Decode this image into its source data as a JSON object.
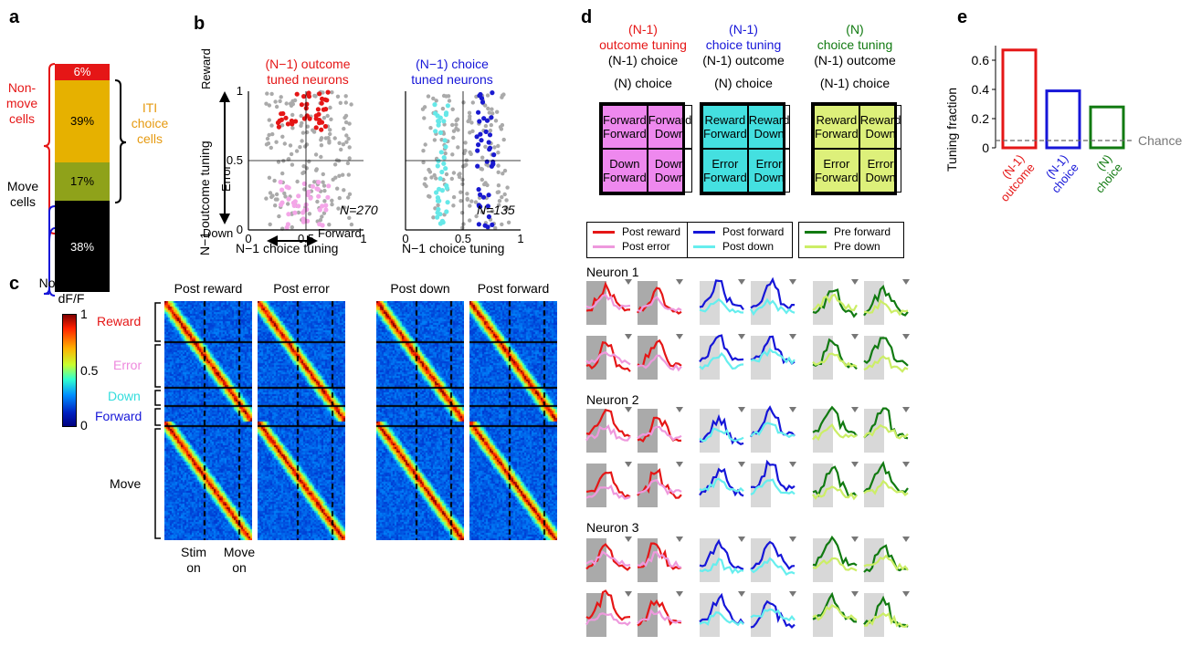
{
  "panel_a": {
    "label": "a",
    "segments": [
      {
        "pct": "6%",
        "color": "#e51616"
      },
      {
        "pct": "39%",
        "color": "#e6b100"
      },
      {
        "pct": "17%",
        "color": "#8fa21a"
      },
      {
        "pct": "38%",
        "color": "#000000"
      }
    ],
    "nonmove_label_1": "Non-",
    "nonmove_label_2": "move",
    "nonmove_label_3": "cells",
    "move_label_1": "Move",
    "move_label_2": "cells",
    "iti_label_1": "ITI",
    "iti_label_2": "choice",
    "iti_label_3": "cells"
  },
  "panel_b": {
    "label": "b",
    "left_title_1": "(N−1) outcome",
    "left_title_2": "tuned neurons",
    "right_title_1": "(N−1) choice",
    "right_title_2": "tuned neurons",
    "ylabel": "N−1 outcome tuning",
    "xlabel": "N−1 choice tuning",
    "reward": "Reward",
    "error": "Error",
    "down": "Down",
    "forward": "Forward",
    "n_left": "N=270",
    "n_right": "N=135",
    "ticks_x": [
      "0",
      "0.5",
      "1"
    ],
    "ticks_y": [
      "0",
      "0.5",
      "1"
    ]
  },
  "panel_c": {
    "label": "c",
    "colorbar_title_1": "Normalized",
    "colorbar_title_2": "dF/F",
    "colorbar_ticks": [
      "1",
      "0.5",
      "0"
    ],
    "group_labels": [
      "Reward",
      "Error",
      "Down",
      "Forward",
      "Move"
    ],
    "column_titles": [
      "Post reward",
      "Post error",
      "Post down",
      "Post forward"
    ],
    "stim_on_1": "Stim",
    "stim_on_2": "on",
    "move_on_1": "Move",
    "move_on_2": "on"
  },
  "panel_d": {
    "label": "d",
    "cols": [
      {
        "header_1": "(N-1)",
        "header_2": "outcome tuning",
        "row_var": "(N-1) choice",
        "col_var": "(N) choice",
        "cells": [
          "Forward\nForward",
          "Forward\nDown",
          "Down\nForward",
          "Down\nDown"
        ],
        "fill": "#ee88ee",
        "legend": [
          "Post reward",
          "Post error"
        ],
        "legend_colors": [
          "#e51616",
          "#ee99dd"
        ]
      },
      {
        "header_1": "(N-1)",
        "header_2": "choice tuning",
        "row_var": "(N-1) outcome",
        "col_var": "(N) choice",
        "cells": [
          "Reward\nForward",
          "Reward\nDown",
          "Error\nForward",
          "Error\nDown"
        ],
        "fill": "#44e0e0",
        "legend": [
          "Post forward",
          "Post down"
        ],
        "legend_colors": [
          "#1616d8",
          "#66eeee"
        ]
      },
      {
        "header_1": "(N)",
        "header_2": "choice tuning",
        "row_var": "(N-1) outcome",
        "col_var": "(N-1) choice",
        "cells": [
          "Reward\nForward",
          "Reward\nDown",
          "Error\nForward",
          "Error\nDown"
        ],
        "fill": "#ddf07a",
        "legend": [
          "Pre forward",
          "Pre down"
        ],
        "legend_colors": [
          "#117a11",
          "#ccee66"
        ]
      }
    ],
    "neurons": [
      "Neuron 1",
      "Neuron 2",
      "Neuron 3"
    ]
  },
  "panel_e": {
    "label": "e",
    "ylabel": "Tuning fraction",
    "chance": "Chance",
    "chart_data": {
      "type": "bar",
      "categories": [
        "(N-1) outcome",
        "(N-1) choice",
        "(N) choice"
      ],
      "values": [
        0.67,
        0.39,
        0.28
      ],
      "colors": [
        "#e51616",
        "#1616d8",
        "#117a11"
      ],
      "chance": 0.05,
      "ylim": [
        0,
        0.7
      ],
      "yticks": [
        "0",
        "0.2",
        "0.4",
        "0.6"
      ],
      "ylabel": "Tuning fraction"
    },
    "cat_lines": [
      [
        "(N-1)",
        "outcome"
      ],
      [
        "(N-1)",
        "choice"
      ],
      [
        "(N)",
        "choice"
      ]
    ]
  }
}
